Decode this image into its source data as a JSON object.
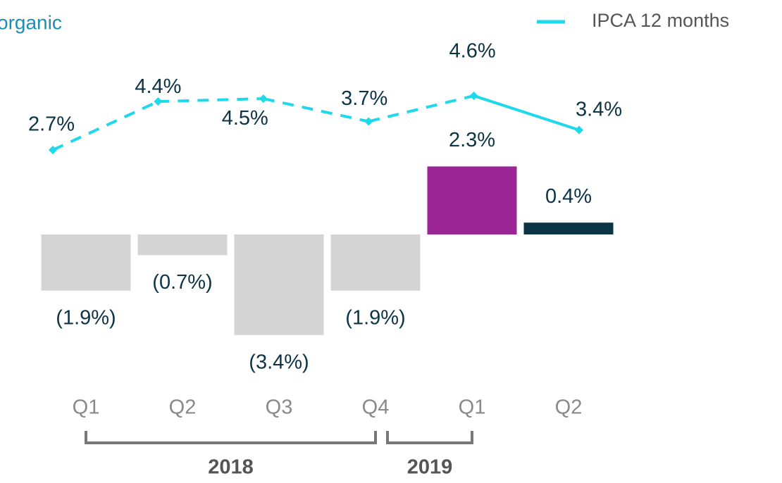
{
  "chart_data": {
    "type": "bar",
    "title": "organic",
    "categories": [
      "Q1",
      "Q2",
      "Q3",
      "Q4",
      "Q1",
      "Q2"
    ],
    "groups": [
      {
        "label": "2018",
        "categories": [
          0,
          1,
          2,
          3
        ]
      },
      {
        "label": "2019",
        "categories": [
          4,
          5
        ]
      }
    ],
    "values": [
      -1.9,
      -0.7,
      -3.4,
      -1.9,
      2.3,
      0.4
    ],
    "value_labels": [
      "(1.9%)",
      "(0.7%)",
      "(3.4%)",
      "(1.9%)",
      "2.3%",
      "0.4%"
    ],
    "colors": [
      "#d4d4d4",
      "#d4d4d4",
      "#d4d4d4",
      "#d4d4d4",
      "#9c2596",
      "#0d3347"
    ],
    "ylim": [
      -4,
      4
    ],
    "series": [
      {
        "name": "IPCA 12 months",
        "type": "line",
        "axis": "y2",
        "color": "#1ed8ec",
        "values": [
          2.7,
          4.4,
          4.5,
          3.7,
          4.6,
          3.4
        ],
        "value_labels": [
          "2.7%",
          "4.4%",
          "4.5%",
          "3.7%",
          "4.6%",
          "3.4%"
        ],
        "segment_styles": [
          "dashed",
          "dashed",
          "dashed",
          "dashed",
          "solid"
        ]
      }
    ],
    "y2lim": [
      2,
      5
    ],
    "legend": "top-right"
  }
}
